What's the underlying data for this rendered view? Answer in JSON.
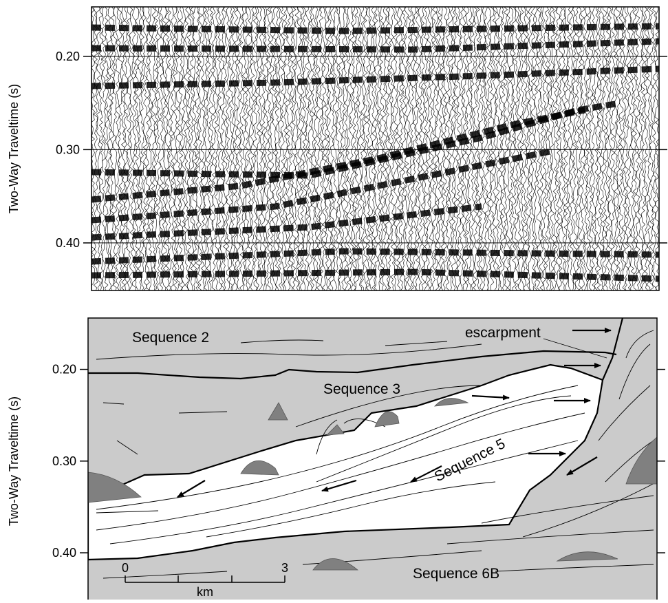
{
  "seismic_panel": {
    "axis_label": "Two-Way Traveltime (s)",
    "ylim": [
      0.147,
      0.451
    ],
    "ticks": [
      {
        "value": 0.2,
        "label": "0.20"
      },
      {
        "value": 0.3,
        "label": "0.30"
      },
      {
        "value": 0.4,
        "label": "0.40"
      }
    ]
  },
  "interpretation_panel": {
    "axis_label": "Two-Way Traveltime (s)",
    "ylim": [
      0.144,
      0.451
    ],
    "ticks": [
      {
        "value": 0.2,
        "label": "0.20"
      },
      {
        "value": 0.3,
        "label": "0.30"
      },
      {
        "value": 0.4,
        "label": "0.40"
      }
    ],
    "labels": [
      "Sequence 2",
      "escarpment",
      "Sequence 3",
      "Sequence 5",
      "Sequence 6B"
    ],
    "scale_bar": {
      "start": "0",
      "end": "3",
      "unit": "km"
    }
  }
}
